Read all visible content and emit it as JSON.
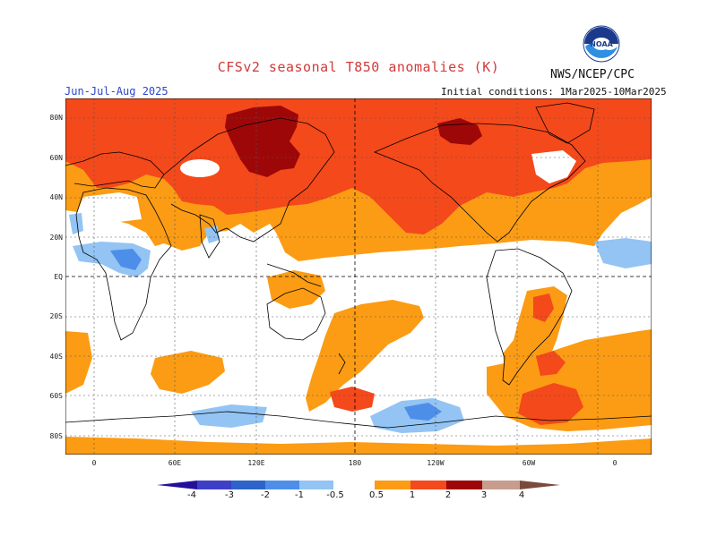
{
  "title": "CFSv2 seasonal T850 anomalies (K)",
  "organization": "NWS/NCEP/CPC",
  "season": "Jun-Jul-Aug 2025",
  "initial_conditions": "Initial conditions: 1Mar2025-10Mar2025",
  "logo_text": "NOAA",
  "lat_labels": [
    "80N",
    "60N",
    "40N",
    "20N",
    "EQ",
    "20S",
    "40S",
    "60S",
    "80S"
  ],
  "lon_labels": [
    "0",
    "60E",
    "120E",
    "180",
    "120W",
    "60W",
    "0"
  ],
  "colorbar": {
    "labels": [
      "-4",
      "-3",
      "-2",
      "-1",
      "-0.5",
      "0.5",
      "1",
      "2",
      "3",
      "4"
    ],
    "colors": [
      "#24119a",
      "#3e3fc6",
      "#2e64c9",
      "#4d8fe8",
      "#93c4f3",
      "#ffffff",
      "#fb9c14",
      "#f4491b",
      "#9e0708",
      "#c79d8f",
      "#7a4b3c"
    ]
  },
  "colors": {
    "orange": "#fb9c14",
    "red_orange": "#f4491b",
    "dark_red": "#9e0708",
    "light_blue": "#93c4f3",
    "blue": "#4d8fe8",
    "coast": "#000000"
  }
}
